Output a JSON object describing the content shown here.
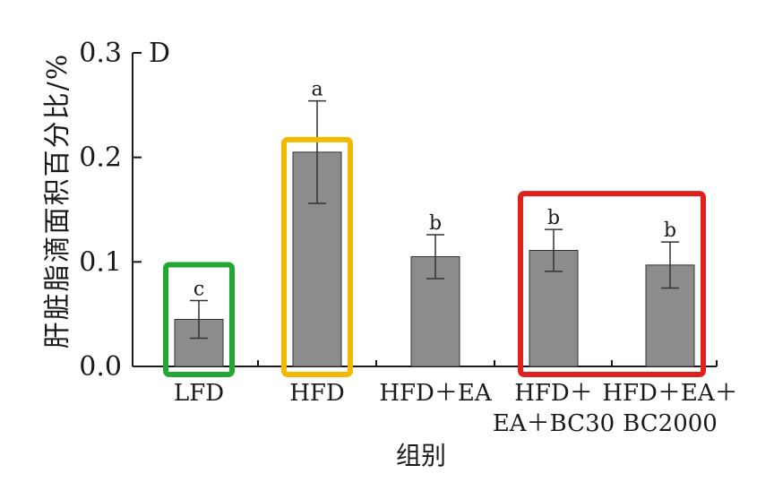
{
  "chart_data": {
    "type": "bar",
    "panel_label": "D",
    "ylabel": "肝脏脂滴面积百分比/%",
    "xlabel": "组别",
    "ylim": [
      0,
      0.3
    ],
    "yticks": [
      0.0,
      0.1,
      0.2,
      0.3
    ],
    "ytick_labels": [
      "0.0",
      "0.1",
      "0.2",
      "0.3"
    ],
    "categories": [
      [
        "LFD"
      ],
      [
        "HFD"
      ],
      [
        "HFD＋EA"
      ],
      [
        "HFD＋",
        "EA＋BC30"
      ],
      [
        "HFD＋EA＋",
        "BC2000"
      ]
    ],
    "values": [
      0.045,
      0.205,
      0.105,
      0.111,
      0.097
    ],
    "errors": [
      0.018,
      0.049,
      0.021,
      0.02,
      0.022
    ],
    "significance": [
      "c",
      "a",
      "b",
      "b",
      "b"
    ],
    "bar_color": "#8c8c8c",
    "highlight_boxes": [
      {
        "color": "#22a832",
        "categories": [
          0
        ]
      },
      {
        "color": "#f5b800",
        "categories": [
          1
        ]
      },
      {
        "color": "#e0201b",
        "categories": [
          3,
          4
        ]
      }
    ],
    "grid": false,
    "legend": "none"
  }
}
